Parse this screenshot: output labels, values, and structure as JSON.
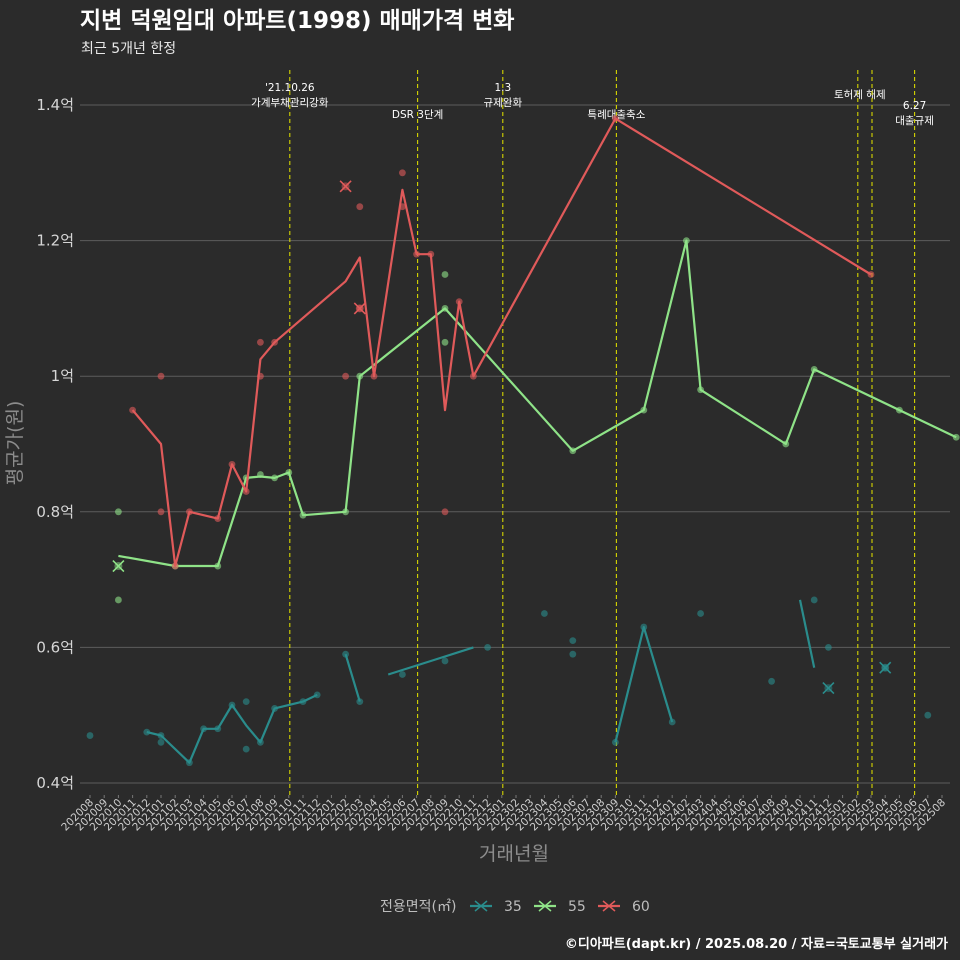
{
  "header": {
    "title": "지변 덕원임대 아파트(1998) 매매가격 변화",
    "subtitle": "최근 5개년 한정"
  },
  "footer": {
    "caption": "©디아파트(dapt.kr) / 2025.08.20 / 자료=국토교통부 실거래가"
  },
  "legend": {
    "title": "전용면적(㎡)",
    "position": "bottom"
  },
  "chart_data": {
    "type": "line",
    "title": "지변 덕원임대 아파트(1998) 매매가격 변화",
    "subtitle": "최근 5개년 한정",
    "xlabel": "거래년월",
    "ylabel": "평균가(원)",
    "ylim": [
      0.39,
      1.45
    ],
    "y_unit": "억",
    "y_ticks": [
      {
        "value": 0.4,
        "label": "0.4억"
      },
      {
        "value": 0.6,
        "label": "0.6억"
      },
      {
        "value": 0.8,
        "label": "0.8억"
      },
      {
        "value": 1.0,
        "label": "1억"
      },
      {
        "value": 1.2,
        "label": "1.2억"
      },
      {
        "value": 1.4,
        "label": "1.4억"
      }
    ],
    "x_categories": [
      "202008",
      "202009",
      "202010",
      "202011",
      "202012",
      "202101",
      "202102",
      "202103",
      "202104",
      "202105",
      "202106",
      "202107",
      "202108",
      "202109",
      "202110",
      "202111",
      "202112",
      "202201",
      "202202",
      "202203",
      "202204",
      "202205",
      "202206",
      "202207",
      "202208",
      "202209",
      "202210",
      "202211",
      "202212",
      "202301",
      "202302",
      "202303",
      "202304",
      "202305",
      "202306",
      "202307",
      "202308",
      "202309",
      "202310",
      "202311",
      "202312",
      "202401",
      "202402",
      "202403",
      "202404",
      "202405",
      "202406",
      "202407",
      "202408",
      "202409",
      "202410",
      "202411",
      "202412",
      "202501",
      "202502",
      "202503",
      "202504",
      "202505",
      "202506",
      "202507",
      "202508"
    ],
    "grid": true,
    "events": [
      {
        "x": "202110",
        "label": "'21.10.26\n가계부채관리강화",
        "row": 1
      },
      {
        "x": "202207",
        "label": "DSR 3단계",
        "row": 2
      },
      {
        "x": "202301",
        "label": "1.3\n규제완화",
        "row": 1
      },
      {
        "x": "202309",
        "label": "특례대출축소",
        "row": 2
      },
      {
        "x": "202502",
        "label": "토허제 해제",
        "row": 0
      },
      {
        "x": "202503",
        "label": "",
        "row": 0
      },
      {
        "x": "202506",
        "label": "6.27\n대출규제",
        "row": 1
      }
    ],
    "series": [
      {
        "name": "35",
        "color": "#2a8c8c",
        "line_segments": [
          [
            [
              "202012",
              0.475
            ],
            [
              "202101",
              0.47
            ],
            [
              "202103",
              0.43
            ],
            [
              "202104",
              0.48
            ],
            [
              "202105",
              0.48
            ],
            [
              "202106",
              0.515
            ],
            [
              "202107",
              0.485
            ],
            [
              "202108",
              0.46
            ],
            [
              "202109",
              0.51
            ],
            [
              "202111",
              0.52
            ],
            [
              "202112",
              0.53
            ]
          ],
          [
            [
              "202202",
              0.59
            ],
            [
              "202203",
              0.52
            ]
          ],
          [
            [
              "202205",
              0.56
            ],
            [
              "202208",
              0.58
            ],
            [
              "202211",
              0.6
            ]
          ],
          [
            [
              "202309",
              0.46
            ],
            [
              "202311",
              0.63
            ],
            [
              "202313",
              0.49
            ]
          ],
          [
            [
              "202410",
              0.67
            ],
            [
              "202411",
              0.57
            ]
          ]
        ],
        "points": [
          [
            "202008",
            0.47
          ],
          [
            "202012",
            0.475
          ],
          [
            "202101",
            0.47
          ],
          [
            "202101",
            0.46
          ],
          [
            "202103",
            0.43
          ],
          [
            "202104",
            0.48
          ],
          [
            "202105",
            0.48
          ],
          [
            "202106",
            0.515
          ],
          [
            "202107",
            0.52
          ],
          [
            "202107",
            0.45
          ],
          [
            "202108",
            0.46
          ],
          [
            "202109",
            0.51
          ],
          [
            "202111",
            0.52
          ],
          [
            "202112",
            0.53
          ],
          [
            "202202",
            0.59
          ],
          [
            "202203",
            0.52
          ],
          [
            "202206",
            0.56
          ],
          [
            "202209",
            0.58
          ],
          [
            "202212",
            0.6
          ],
          [
            "202304",
            0.65
          ],
          [
            "202306",
            0.61
          ],
          [
            "202306",
            0.59
          ],
          [
            "202309",
            0.46
          ],
          [
            "202311",
            0.63
          ],
          [
            "202401",
            0.49
          ],
          [
            "202403",
            0.65
          ],
          [
            "202408",
            0.55
          ],
          [
            "202411",
            0.67
          ],
          [
            "202412",
            0.6
          ],
          [
            "202504",
            0.57
          ],
          [
            "202507",
            0.5
          ]
        ],
        "cross_points": [
          [
            "202412",
            0.54
          ],
          [
            "202504",
            0.57
          ]
        ]
      },
      {
        "name": "55",
        "color": "#8fe388",
        "line_segments": [
          [
            [
              "202010",
              0.735
            ],
            [
              "202102",
              0.72
            ],
            [
              "202105",
              0.72
            ],
            [
              "202107",
              0.85
            ],
            [
              "202108",
              0.852
            ],
            [
              "202109",
              0.85
            ],
            [
              "202110",
              0.858
            ],
            [
              "202111",
              0.795
            ],
            [
              "202202",
              0.8
            ],
            [
              "202203",
              1.0
            ],
            [
              "202209",
              1.1
            ],
            [
              "202306",
              0.89
            ],
            [
              "202311",
              0.95
            ],
            [
              "202402",
              1.2
            ],
            [
              "202403",
              0.98
            ],
            [
              "202409",
              0.9
            ],
            [
              "202411",
              1.01
            ],
            [
              "202505",
              0.95
            ],
            [
              "202509",
              0.91
            ]
          ]
        ],
        "points": [
          [
            "202010",
            0.8
          ],
          [
            "202010",
            0.67
          ],
          [
            "202102",
            0.72
          ],
          [
            "202105",
            0.72
          ],
          [
            "202107",
            0.85
          ],
          [
            "202108",
            0.855
          ],
          [
            "202109",
            0.85
          ],
          [
            "202110",
            0.858
          ],
          [
            "202111",
            0.795
          ],
          [
            "202202",
            0.8
          ],
          [
            "202203",
            1.0
          ],
          [
            "202209",
            1.15
          ],
          [
            "202209",
            1.1
          ],
          [
            "202209",
            1.05
          ],
          [
            "202306",
            0.89
          ],
          [
            "202311",
            0.95
          ],
          [
            "202402",
            1.2
          ],
          [
            "202403",
            0.98
          ],
          [
            "202409",
            0.9
          ],
          [
            "202411",
            1.01
          ],
          [
            "202505",
            0.95
          ],
          [
            "202509",
            0.91
          ]
        ],
        "cross_points": [
          [
            "202010",
            0.72
          ]
        ]
      },
      {
        "name": "60",
        "color": "#e05a5a",
        "line_segments": [
          [
            [
              "202011",
              0.95
            ],
            [
              "202101",
              0.9
            ],
            [
              "202102",
              0.72
            ],
            [
              "202103",
              0.8
            ],
            [
              "202105",
              0.79
            ],
            [
              "202106",
              0.87
            ],
            [
              "202107",
              0.83
            ],
            [
              "202108",
              1.025
            ],
            [
              "202109",
              1.05
            ],
            [
              "202202",
              1.14
            ],
            [
              "202203",
              1.175
            ],
            [
              "202204",
              1.0
            ],
            [
              "202206",
              1.275
            ],
            [
              "202207",
              1.18
            ],
            [
              "202208",
              1.18
            ],
            [
              "202209",
              0.95
            ],
            [
              "202210",
              1.11
            ],
            [
              "202211",
              1.0
            ],
            [
              "202309",
              1.38
            ],
            [
              "202503",
              1.15
            ]
          ]
        ],
        "points": [
          [
            "202011",
            0.95
          ],
          [
            "202101",
            1.0
          ],
          [
            "202101",
            0.8
          ],
          [
            "202102",
            0.72
          ],
          [
            "202103",
            0.8
          ],
          [
            "202105",
            0.79
          ],
          [
            "202106",
            0.87
          ],
          [
            "202107",
            0.83
          ],
          [
            "202108",
            1.05
          ],
          [
            "202108",
            1.0
          ],
          [
            "202109",
            1.05
          ],
          [
            "202202",
            1.0
          ],
          [
            "202203",
            1.25
          ],
          [
            "202203",
            1.1
          ],
          [
            "202204",
            1.0
          ],
          [
            "202206",
            1.3
          ],
          [
            "202206",
            1.25
          ],
          [
            "202207",
            1.18
          ],
          [
            "202208",
            1.18
          ],
          [
            "202209",
            0.8
          ],
          [
            "202210",
            1.11
          ],
          [
            "202211",
            1.0
          ],
          [
            "202309",
            1.38
          ],
          [
            "202503",
            1.15
          ]
        ],
        "cross_points": [
          [
            "202202",
            1.28
          ],
          [
            "202203",
            1.1
          ]
        ]
      }
    ]
  }
}
